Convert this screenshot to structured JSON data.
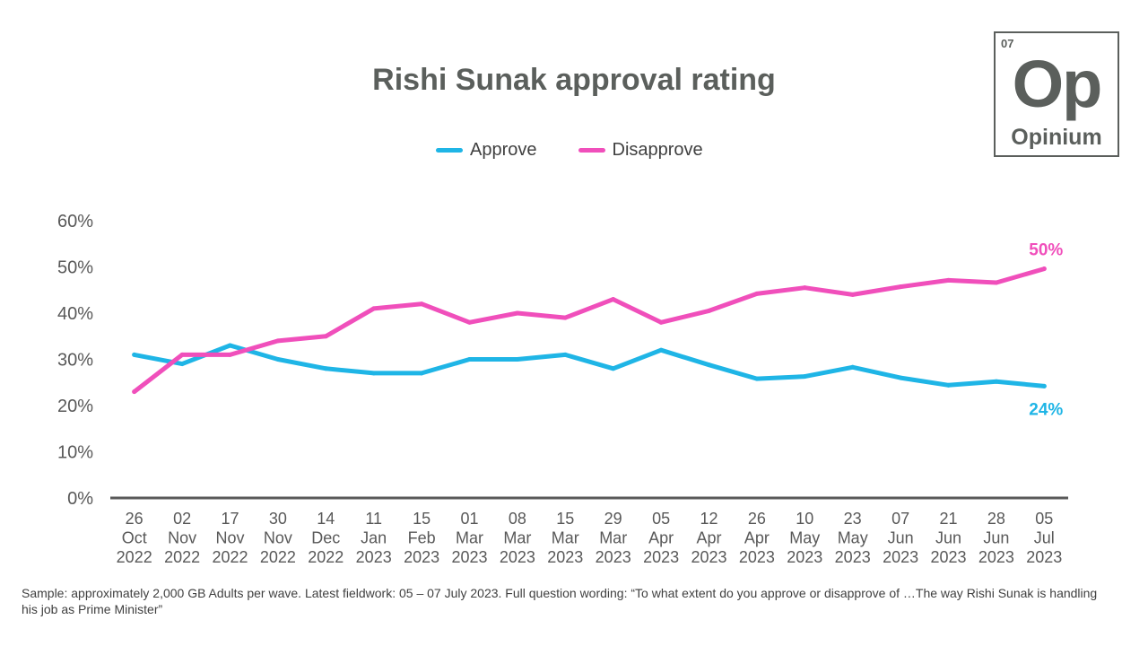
{
  "chart_data": {
    "type": "line",
    "title": "Rishi Sunak approval rating",
    "categories": [
      [
        "26",
        "Oct",
        "2022"
      ],
      [
        "02",
        "Nov",
        "2022"
      ],
      [
        "17",
        "Nov",
        "2022"
      ],
      [
        "30",
        "Nov",
        "2022"
      ],
      [
        "14",
        "Dec",
        "2022"
      ],
      [
        "11",
        "Jan",
        "2023"
      ],
      [
        "15",
        "Feb",
        "2023"
      ],
      [
        "01",
        "Mar",
        "2023"
      ],
      [
        "08",
        "Mar",
        "2023"
      ],
      [
        "15",
        "Mar",
        "2023"
      ],
      [
        "29",
        "Mar",
        "2023"
      ],
      [
        "05",
        "Apr",
        "2023"
      ],
      [
        "12",
        "Apr",
        "2023"
      ],
      [
        "26",
        "Apr",
        "2023"
      ],
      [
        "10",
        "May",
        "2023"
      ],
      [
        "23",
        "May",
        "2023"
      ],
      [
        "07",
        "Jun",
        "2023"
      ],
      [
        "21",
        "Jun",
        "2023"
      ],
      [
        "28",
        "Jun",
        "2023"
      ],
      [
        "05",
        "Jul",
        "2023"
      ]
    ],
    "series": [
      {
        "name": "Approve",
        "color": "#1fb5e6",
        "values": [
          31,
          29,
          33,
          30,
          28,
          27,
          27,
          30,
          30,
          31,
          28,
          32,
          28.8,
          25.8,
          26.3,
          28.3,
          26,
          24.4,
          25.2,
          24.2
        ],
        "end_label": "24%"
      },
      {
        "name": "Disapprove",
        "color": "#f04fbb",
        "values": [
          23,
          31,
          31,
          34,
          35,
          41,
          42,
          38,
          40,
          39,
          43,
          38,
          40.5,
          44.2,
          45.5,
          44,
          45.7,
          47.1,
          46.6,
          49.6
        ],
        "end_label": "50%"
      }
    ],
    "yticks": [
      "0%",
      "10%",
      "20%",
      "30%",
      "40%",
      "50%",
      "60%"
    ],
    "ylim": [
      0,
      60
    ],
    "grid": false,
    "legend_position": "top"
  },
  "logo": {
    "number": "07",
    "symbol": "Op",
    "name": "Opinium"
  },
  "footnote": "Sample: approximately 2,000 GB Adults per wave. Latest fieldwork: 05 – 07 July 2023. Full question wording: “To what extent do you approve or disapprove of …The way Rishi Sunak is handling his job as Prime Minister”"
}
